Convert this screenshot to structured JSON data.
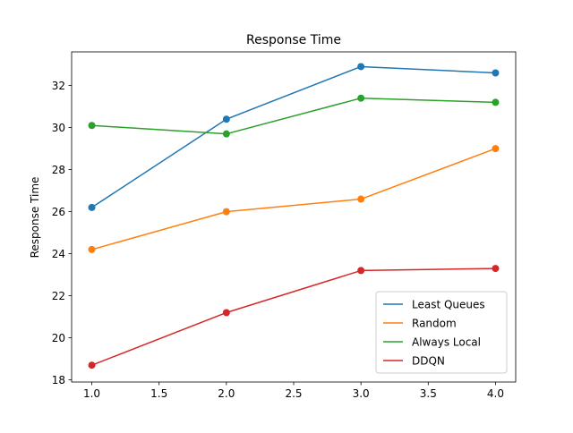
{
  "chart_data": {
    "type": "line",
    "title": "Response Time",
    "xlabel": "",
    "ylabel": "Response Time",
    "x": [
      1.0,
      2.0,
      3.0,
      4.0
    ],
    "xlim": [
      0.85,
      4.15
    ],
    "ylim": [
      17.9,
      33.6
    ],
    "xticks": [
      "1.0",
      "1.5",
      "2.0",
      "2.5",
      "3.0",
      "3.5",
      "4.0"
    ],
    "xtick_values": [
      1.0,
      1.5,
      2.0,
      2.5,
      3.0,
      3.5,
      4.0
    ],
    "yticks": [
      "18",
      "20",
      "22",
      "24",
      "26",
      "28",
      "30",
      "32"
    ],
    "ytick_values": [
      18,
      20,
      22,
      24,
      26,
      28,
      30,
      32
    ],
    "grid": false,
    "legend_position": "lower-right",
    "series": [
      {
        "name": "Least Queues",
        "color": "#1f77b4",
        "values": [
          26.2,
          30.4,
          32.9,
          32.6
        ]
      },
      {
        "name": "Random",
        "color": "#ff7f0e",
        "values": [
          24.2,
          26.0,
          26.6,
          29.0
        ]
      },
      {
        "name": "Always Local",
        "color": "#2ca02c",
        "values": [
          30.1,
          29.7,
          31.4,
          31.2
        ]
      },
      {
        "name": "DDQN",
        "color": "#d62728",
        "values": [
          18.7,
          21.2,
          23.2,
          23.3
        ]
      }
    ]
  }
}
